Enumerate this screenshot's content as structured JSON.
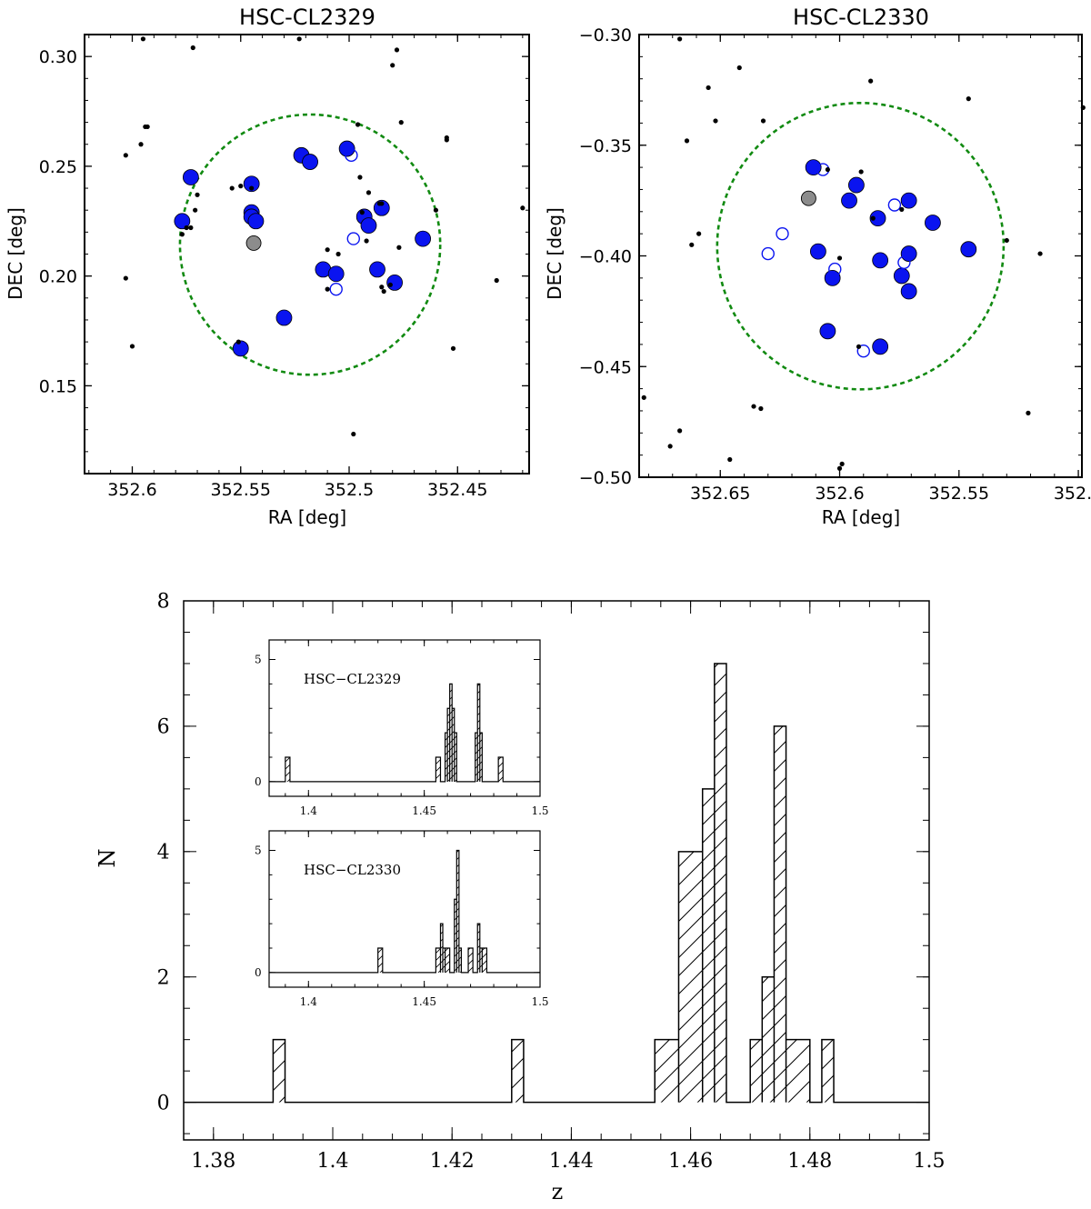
{
  "chart_data": [
    {
      "type": "scatter",
      "title": "HSC-CL2329",
      "xlabel": "RA [deg]",
      "ylabel": "DEC [deg]",
      "xlim": [
        352.622,
        352.417
      ],
      "ylim": [
        0.11,
        0.31
      ],
      "x_reversed": true,
      "xticks": [
        352.6,
        352.55,
        352.5,
        352.45
      ],
      "xtick_labels": [
        "352.6",
        "352.55",
        "352.5",
        "352.45"
      ],
      "yticks": [
        0.15,
        0.2,
        0.25,
        0.3
      ],
      "ytick_labels": [
        "0.15",
        "0.20",
        "0.25",
        "0.30"
      ],
      "circle": {
        "center": [
          352.518,
          0.2143
        ],
        "radius_deg": 0.06,
        "color": "#118a11"
      },
      "series": [
        {
          "kind": "members",
          "color": "#0a14f0",
          "points": [
            [
              352.573,
              0.245
            ],
            [
              352.577,
              0.225
            ],
            [
              352.545,
              0.242
            ],
            [
              352.545,
              0.229
            ],
            [
              352.545,
              0.227
            ],
            [
              352.543,
              0.225
            ],
            [
              352.522,
              0.255
            ],
            [
              352.518,
              0.252
            ],
            [
              352.501,
              0.258
            ],
            [
              352.493,
              0.227
            ],
            [
              352.491,
              0.223
            ],
            [
              352.485,
              0.231
            ],
            [
              352.466,
              0.217
            ],
            [
              352.479,
              0.197
            ],
            [
              352.487,
              0.203
            ],
            [
              352.512,
              0.203
            ],
            [
              352.506,
              0.201
            ],
            [
              352.53,
              0.181
            ],
            [
              352.55,
              0.167
            ]
          ]
        },
        {
          "kind": "open",
          "color": "#0a14f0",
          "points": [
            [
              352.499,
              0.255
            ],
            [
              352.498,
              0.217
            ],
            [
              352.506,
              0.194
            ]
          ]
        },
        {
          "kind": "bcg",
          "color": "#8c8c8c",
          "points": [
            [
              352.544,
              0.215
            ]
          ]
        },
        {
          "kind": "field",
          "points": [
            [
              352.595,
              0.308
            ],
            [
              352.572,
              0.304
            ],
            [
              352.523,
              0.308
            ],
            [
              352.478,
              0.303
            ],
            [
              352.48,
              0.296
            ],
            [
              352.594,
              0.268
            ],
            [
              352.593,
              0.268
            ],
            [
              352.603,
              0.255
            ],
            [
              352.596,
              0.26
            ],
            [
              352.57,
              0.237
            ],
            [
              352.571,
              0.23
            ],
            [
              352.573,
              0.222
            ],
            [
              352.575,
              0.222
            ],
            [
              352.577,
              0.219
            ],
            [
              352.554,
              0.24
            ],
            [
              352.55,
              0.241
            ],
            [
              352.545,
              0.24
            ],
            [
              352.496,
              0.269
            ],
            [
              352.476,
              0.27
            ],
            [
              352.455,
              0.263
            ],
            [
              352.455,
              0.262
            ],
            [
              352.495,
              0.245
            ],
            [
              352.491,
              0.238
            ],
            [
              352.486,
              0.233
            ],
            [
              352.485,
              0.233
            ],
            [
              352.494,
              0.229
            ],
            [
              352.46,
              0.23
            ],
            [
              352.477,
              0.213
            ],
            [
              352.492,
              0.216
            ],
            [
              352.51,
              0.212
            ],
            [
              352.505,
              0.21
            ],
            [
              352.51,
              0.194
            ],
            [
              352.481,
              0.196
            ],
            [
              352.485,
              0.195
            ],
            [
              352.484,
              0.193
            ],
            [
              352.603,
              0.199
            ],
            [
              352.6,
              0.168
            ],
            [
              352.551,
              0.17
            ],
            [
              352.498,
              0.128
            ],
            [
              352.452,
              0.167
            ],
            [
              352.432,
              0.198
            ],
            [
              352.42,
              0.231
            ]
          ]
        }
      ]
    },
    {
      "type": "scatter",
      "title": "HSC-CL2330",
      "xlabel": "RA [deg]",
      "ylabel": "DEC [deg]",
      "xlim": [
        352.684,
        352.4985
      ],
      "ylim": [
        -0.5,
        -0.3
      ],
      "x_reversed": true,
      "xticks": [
        352.65,
        352.6,
        352.55,
        352.5
      ],
      "xtick_labels": [
        "352.65",
        "352.6",
        "352.55",
        "352.5"
      ],
      "yticks": [
        -0.5,
        -0.45,
        -0.4,
        -0.35,
        -0.3
      ],
      "ytick_labels": [
        "−0.50",
        "−0.45",
        "−0.40",
        "−0.35",
        "−0.30"
      ],
      "circle": {
        "center": [
          352.5913,
          -0.3956
        ],
        "radius_deg": 0.06,
        "color": "#118a11"
      },
      "series": [
        {
          "kind": "members",
          "color": "#0a14f0",
          "points": [
            [
              352.611,
              -0.36
            ],
            [
              352.593,
              -0.368
            ],
            [
              352.596,
              -0.375
            ],
            [
              352.584,
              -0.383
            ],
            [
              352.571,
              -0.375
            ],
            [
              352.561,
              -0.385
            ],
            [
              352.546,
              -0.397
            ],
            [
              352.571,
              -0.399
            ],
            [
              352.583,
              -0.402
            ],
            [
              352.574,
              -0.409
            ],
            [
              352.571,
              -0.416
            ],
            [
              352.609,
              -0.398
            ],
            [
              352.603,
              -0.41
            ],
            [
              352.605,
              -0.434
            ],
            [
              352.583,
              -0.441
            ]
          ]
        },
        {
          "kind": "open",
          "color": "#0a14f0",
          "points": [
            [
              352.607,
              -0.361
            ],
            [
              352.577,
              -0.377
            ],
            [
              352.624,
              -0.39
            ],
            [
              352.63,
              -0.399
            ],
            [
              352.602,
              -0.406
            ],
            [
              352.573,
              -0.403
            ],
            [
              352.59,
              -0.443
            ]
          ]
        },
        {
          "kind": "bcg",
          "color": "#8c8c8c",
          "points": [
            [
              352.613,
              -0.374
            ]
          ]
        },
        {
          "kind": "field",
          "points": [
            [
              352.667,
              -0.302
            ],
            [
              352.642,
              -0.315
            ],
            [
              352.655,
              -0.324
            ],
            [
              352.587,
              -0.321
            ],
            [
              352.546,
              -0.329
            ],
            [
              352.498,
              -0.333
            ],
            [
              352.652,
              -0.339
            ],
            [
              352.632,
              -0.339
            ],
            [
              352.664,
              -0.348
            ],
            [
              352.591,
              -0.362
            ],
            [
              352.605,
              -0.361
            ],
            [
              352.586,
              -0.383
            ],
            [
              352.574,
              -0.379
            ],
            [
              352.659,
              -0.39
            ],
            [
              352.662,
              -0.395
            ],
            [
              352.6,
              -0.401
            ],
            [
              352.53,
              -0.393
            ],
            [
              352.516,
              -0.399
            ],
            [
              352.592,
              -0.441
            ],
            [
              352.682,
              -0.464
            ],
            [
              352.636,
              -0.468
            ],
            [
              352.633,
              -0.469
            ],
            [
              352.667,
              -0.479
            ],
            [
              352.671,
              -0.486
            ],
            [
              352.646,
              -0.492
            ],
            [
              352.599,
              -0.494
            ],
            [
              352.6,
              -0.496
            ],
            [
              352.521,
              -0.471
            ]
          ]
        }
      ]
    },
    {
      "type": "histogram",
      "xlabel": "z",
      "ylabel": "N",
      "xlim": [
        1.375,
        1.5
      ],
      "ylim": [
        -0.6,
        8
      ],
      "xticks": [
        1.38,
        1.4,
        1.42,
        1.44,
        1.46,
        1.48,
        1.5
      ],
      "xtick_labels": [
        "1.38",
        "1.4",
        "1.42",
        "1.44",
        "1.46",
        "1.48",
        "1.5"
      ],
      "yticks": [
        0,
        2,
        4,
        6,
        8
      ],
      "ytick_labels": [
        "0",
        "2",
        "4",
        "6",
        "8"
      ],
      "bins": [
        [
          1.39,
          1.392,
          1
        ],
        [
          1.43,
          1.432,
          1
        ],
        [
          1.454,
          1.458,
          1
        ],
        [
          1.458,
          1.462,
          4
        ],
        [
          1.462,
          1.464,
          5
        ],
        [
          1.464,
          1.466,
          7
        ],
        [
          1.47,
          1.472,
          1
        ],
        [
          1.472,
          1.474,
          2
        ],
        [
          1.474,
          1.476,
          6
        ],
        [
          1.476,
          1.48,
          1
        ],
        [
          1.482,
          1.484,
          1
        ]
      ],
      "insets": [
        {
          "label": "HSC−CL2329",
          "xlim": [
            1.383,
            1.5
          ],
          "ylim": [
            -0.6,
            5.8
          ],
          "xticks": [
            1.4,
            1.45,
            1.5
          ],
          "xtick_labels": [
            "1.4",
            "1.45",
            "1.5"
          ],
          "yticks": [
            0,
            5
          ],
          "ytick_labels": [
            "0",
            "5"
          ],
          "bins": [
            [
              1.39,
              1.392,
              1
            ],
            [
              1.455,
              1.457,
              1
            ],
            [
              1.459,
              1.46,
              2
            ],
            [
              1.46,
              1.461,
              3
            ],
            [
              1.461,
              1.462,
              4
            ],
            [
              1.462,
              1.463,
              3
            ],
            [
              1.463,
              1.464,
              2
            ],
            [
              1.472,
              1.473,
              2
            ],
            [
              1.473,
              1.474,
              4
            ],
            [
              1.474,
              1.475,
              2
            ],
            [
              1.482,
              1.484,
              1
            ]
          ]
        },
        {
          "label": "HSC−CL2330",
          "xlim": [
            1.383,
            1.5
          ],
          "ylim": [
            -0.6,
            5.8
          ],
          "xticks": [
            1.4,
            1.45,
            1.5
          ],
          "xtick_labels": [
            "1.4",
            "1.45",
            "1.5"
          ],
          "yticks": [
            0,
            5
          ],
          "ytick_labels": [
            "0",
            "5"
          ],
          "bins": [
            [
              1.43,
              1.432,
              1
            ],
            [
              1.455,
              1.457,
              1
            ],
            [
              1.457,
              1.458,
              2
            ],
            [
              1.458,
              1.459,
              1
            ],
            [
              1.459,
              1.461,
              1
            ],
            [
              1.463,
              1.464,
              3
            ],
            [
              1.464,
              1.465,
              5
            ],
            [
              1.465,
              1.466,
              1
            ],
            [
              1.469,
              1.471,
              1
            ],
            [
              1.473,
              1.474,
              2
            ],
            [
              1.474,
              1.475,
              1
            ],
            [
              1.475,
              1.477,
              1
            ]
          ]
        }
      ]
    }
  ]
}
